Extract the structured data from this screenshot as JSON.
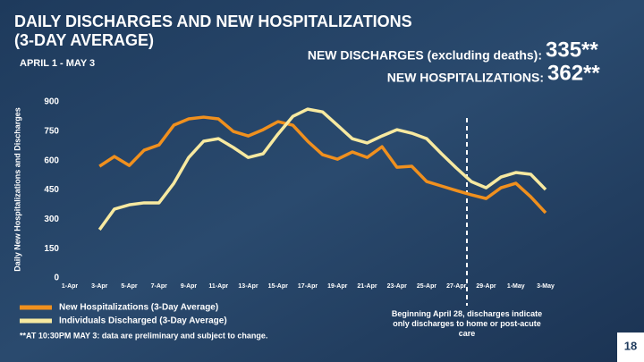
{
  "chart_data": {
    "type": "line",
    "title": "DAILY DISCHARGES AND NEW HOSPITALIZATIONS",
    "title_line2": "(3-DAY AVERAGE)",
    "subtitle": "APRIL 1 - MAY 3",
    "stats": [
      {
        "label": "NEW DISCHARGES (excluding deaths):",
        "value": "335**"
      },
      {
        "label": "NEW HOSPITALIZATIONS:",
        "value": "362**"
      }
    ],
    "ylabel": "Daily New Hospitalizations and Discharges",
    "categories": [
      "1-Apr",
      null,
      "3-Apr",
      null,
      "5-Apr",
      null,
      "7-Apr",
      null,
      "9-Apr",
      null,
      "11-Apr",
      null,
      "13-Apr",
      null,
      "15-Apr",
      null,
      "17-Apr",
      null,
      "19-Apr",
      null,
      "21-Apr",
      null,
      "23-Apr",
      null,
      "25-Apr",
      null,
      "27-Apr",
      null,
      "29-Apr",
      null,
      "1-May",
      null,
      "3-May"
    ],
    "series": [
      {
        "name": "New Hospitalizations (3-Day Average)",
        "color": "#f0901e",
        "values": [
          null,
          null,
          571,
          621,
          575,
          653,
          680,
          781,
          813,
          822,
          813,
          749,
          726,
          758,
          799,
          781,
          699,
          630,
          607,
          644,
          616,
          671,
          566,
          571,
          493,
          470,
          447,
          425,
          406,
          461,
          484,
          415,
          333
        ]
      },
      {
        "name": "Individuals Discharged (3-Day Average)",
        "color": "#f7e9a0",
        "values": [
          null,
          null,
          247,
          352,
          374,
          384,
          384,
          484,
          616,
          699,
          712,
          667,
          616,
          635,
          735,
          826,
          863,
          849,
          781,
          712,
          690,
          726,
          758,
          740,
          712,
          635,
          562,
          493,
          461,
          516,
          539,
          530,
          452
        ]
      }
    ],
    "ylim": [
      0,
      900
    ],
    "yticks": [
      0,
      150,
      300,
      450,
      600,
      750,
      900
    ],
    "annotation": "Beginning April 28, discharges indicate only discharges to home or post-acute care",
    "footnote": "**AT 10:30PM MAY 3: data are preliminary and subject to change.",
    "page_number": "18"
  }
}
